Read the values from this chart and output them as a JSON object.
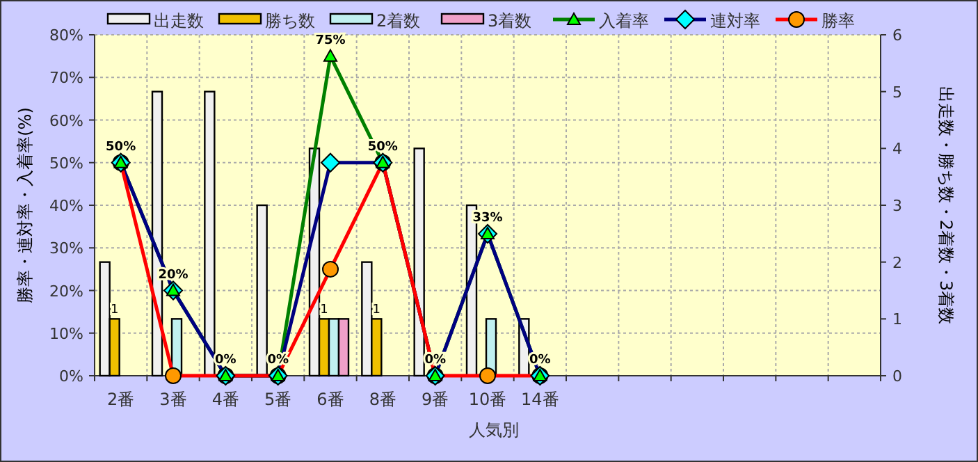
{
  "chart_data": {
    "type": "bar",
    "xlabel": "人気別",
    "ylabel": "勝率・連対率・入着率(%)",
    "y2label": "出走数・勝ち数・2着数・3着数",
    "categories": [
      "2番",
      "3番",
      "4番",
      "5番",
      "6番",
      "8番",
      "9番",
      "10番",
      "14番",
      null,
      null,
      null,
      null,
      null,
      null
    ],
    "ylim": [
      0,
      80
    ],
    "yticks": [
      {
        "value": 0,
        "label": "0%"
      },
      {
        "value": 10,
        "label": "10%"
      },
      {
        "value": 20,
        "label": "20%"
      },
      {
        "value": 30,
        "label": "30%"
      },
      {
        "value": 40,
        "label": "40%"
      },
      {
        "value": 50,
        "label": "50%"
      },
      {
        "value": 60,
        "label": "60%"
      },
      {
        "value": 70,
        "label": "70%"
      },
      {
        "value": 80,
        "label": "80%"
      }
    ],
    "y2lim": [
      0,
      6
    ],
    "y2ticks": [
      0,
      1,
      2,
      3,
      4,
      5,
      6
    ],
    "grid": true,
    "legend": "top",
    "series": [
      {
        "name": "出走数",
        "axis": "y2",
        "color": "#f0f0f0",
        "values": [
          2,
          5,
          5,
          3,
          4,
          2,
          4,
          3,
          1,
          null,
          null,
          null,
          null,
          null,
          null
        ]
      },
      {
        "name": "勝ち数",
        "axis": "y2",
        "color": "#f0c000",
        "values": [
          1,
          0,
          0,
          0,
          1,
          1,
          0,
          0,
          0,
          null,
          null,
          null,
          null,
          null,
          null
        ],
        "value_labels": [
          "1",
          null,
          null,
          null,
          "1",
          "1",
          null,
          null,
          null,
          null,
          null,
          null,
          null,
          null,
          null
        ]
      },
      {
        "name": "2着数",
        "axis": "y2",
        "color": "#c0f0f0",
        "values": [
          0,
          1,
          0,
          0,
          1,
          0,
          0,
          1,
          0,
          null,
          null,
          null,
          null,
          null,
          null
        ]
      },
      {
        "name": "3着数",
        "axis": "y2",
        "color": "#f0a0c8",
        "values": [
          0,
          0,
          0,
          0,
          1,
          0,
          0,
          0,
          0,
          null,
          null,
          null,
          null,
          null,
          null
        ]
      },
      {
        "name": "入着率",
        "type": "line",
        "color": "#008000",
        "marker": "triangle",
        "colors": [
          "#00ff00",
          "#00ff00",
          "#00ff00",
          "#00ff00",
          "#00ff00",
          "#00ff00",
          "#00ff00",
          "#00ff00",
          "#00ff00",
          null,
          null,
          null,
          null,
          null,
          null
        ],
        "values": [
          50,
          20,
          0,
          0,
          75,
          50,
          0,
          33.3,
          0,
          null,
          null,
          null,
          null,
          null,
          null
        ],
        "value_labels": [
          "50%",
          "20%",
          "0%",
          "0%",
          "75%",
          "50%",
          "0%",
          "33%",
          "0%",
          null,
          null,
          null,
          null,
          null,
          null
        ]
      },
      {
        "name": "連対率",
        "type": "line",
        "color": "#000080",
        "marker": "diamond",
        "colors": [
          "#00ffff",
          "#00ffff",
          "#00ffff",
          "#00ffff",
          "#00ffff",
          "#00ffff",
          "#00ffff",
          "#00ffff",
          "#00ffff",
          null,
          null,
          null,
          null,
          null,
          null
        ],
        "values": [
          50,
          20,
          0,
          0,
          50,
          50,
          0,
          33.3,
          0,
          null,
          null,
          null,
          null,
          null,
          null
        ]
      },
      {
        "name": "勝率",
        "type": "line",
        "color": "#ff0000",
        "marker": "circle",
        "colors": [
          "#ff9900",
          "#ff9900",
          "#ff9900",
          "#ff9900",
          "#ff9900",
          "#ff9900",
          "#ff9900",
          "#ff9900",
          "#ff9900",
          null,
          null,
          null,
          null,
          null,
          null
        ],
        "values": [
          50,
          0,
          0,
          0,
          25,
          50,
          0,
          0,
          0,
          null,
          null,
          null,
          null,
          null,
          null
        ]
      }
    ]
  }
}
